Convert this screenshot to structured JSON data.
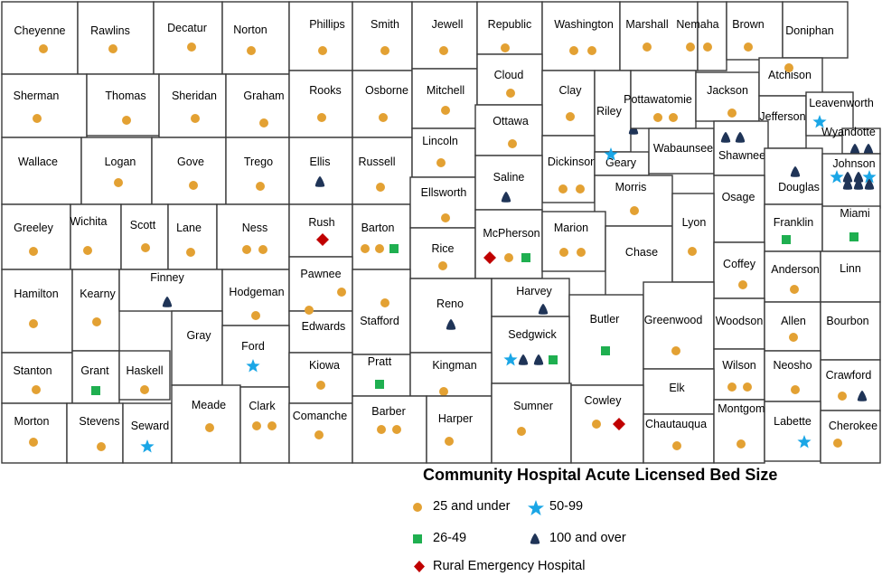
{
  "colors": {
    "small": "#E3A133",
    "medium": "#1FAF50",
    "mid_star": "#1AA6E6",
    "large": "#1F3457",
    "reh": "#C00000"
  },
  "counties": [
    {
      "name": "Cheyenne",
      "m": [
        "s"
      ]
    },
    {
      "name": "Rawlins",
      "m": [
        "s"
      ]
    },
    {
      "name": "Decatur",
      "m": [
        "s"
      ]
    },
    {
      "name": "Norton",
      "m": [
        "s"
      ]
    },
    {
      "name": "Phillips",
      "m": [
        "s"
      ]
    },
    {
      "name": "Smith",
      "m": [
        "s"
      ]
    },
    {
      "name": "Jewell",
      "m": [
        "s"
      ]
    },
    {
      "name": "Republic",
      "m": [
        "s"
      ]
    },
    {
      "name": "Washington",
      "m": [
        "s",
        "s"
      ]
    },
    {
      "name": "Marshall",
      "m": [
        "s"
      ]
    },
    {
      "name": "Nemaha",
      "m": [
        "s",
        "s"
      ]
    },
    {
      "name": "Brown",
      "m": [
        "s"
      ]
    },
    {
      "name": "Doniphan",
      "m": []
    },
    {
      "name": "Sherman",
      "m": [
        "s"
      ]
    },
    {
      "name": "Thomas",
      "m": [
        "s"
      ]
    },
    {
      "name": "Sheridan",
      "m": [
        "s"
      ]
    },
    {
      "name": "Graham",
      "m": [
        "s"
      ]
    },
    {
      "name": "Rooks",
      "m": [
        "s"
      ]
    },
    {
      "name": "Osborne",
      "m": [
        "s"
      ]
    },
    {
      "name": "Mitchell",
      "m": [
        "s"
      ]
    },
    {
      "name": "Cloud",
      "m": [
        "s"
      ]
    },
    {
      "name": "Clay",
      "m": [
        "s"
      ]
    },
    {
      "name": "Riley",
      "m": [
        "l"
      ]
    },
    {
      "name": "Pottawatomie",
      "m": [
        "s",
        "s"
      ]
    },
    {
      "name": "Jackson",
      "m": [
        "s"
      ]
    },
    {
      "name": "Atchison",
      "m": [
        "s"
      ]
    },
    {
      "name": "Jefferson",
      "m": []
    },
    {
      "name": "Leavenworth",
      "m": [
        "t"
      ]
    },
    {
      "name": "Wyandotte",
      "m": [
        "l",
        "l"
      ]
    },
    {
      "name": "Wallace",
      "m": []
    },
    {
      "name": "Logan",
      "m": [
        "s"
      ]
    },
    {
      "name": "Gove",
      "m": [
        "s"
      ]
    },
    {
      "name": "Trego",
      "m": [
        "s"
      ]
    },
    {
      "name": "Ellis",
      "m": [
        "l"
      ]
    },
    {
      "name": "Russell",
      "m": [
        "s"
      ]
    },
    {
      "name": "Lincoln",
      "m": [
        "s"
      ]
    },
    {
      "name": "Ottawa",
      "m": [
        "s"
      ]
    },
    {
      "name": "Dickinson",
      "m": [
        "s",
        "s"
      ]
    },
    {
      "name": "Geary",
      "m": [
        "t"
      ]
    },
    {
      "name": "Wabaunsee",
      "m": []
    },
    {
      "name": "Shawnee",
      "m": [
        "l",
        "l"
      ]
    },
    {
      "name": "Douglas",
      "m": [
        "l"
      ]
    },
    {
      "name": "Johnson",
      "m": [
        "t",
        "l",
        "l",
        "t",
        "l",
        "l",
        "l"
      ]
    },
    {
      "name": "Greeley",
      "m": [
        "s"
      ]
    },
    {
      "name": "Wichita",
      "m": [
        "s"
      ]
    },
    {
      "name": "Scott",
      "m": [
        "s"
      ]
    },
    {
      "name": "Lane",
      "m": [
        "s"
      ]
    },
    {
      "name": "Ness",
      "m": [
        "s",
        "s"
      ]
    },
    {
      "name": "Rush",
      "m": [
        "r"
      ]
    },
    {
      "name": "Barton",
      "m": [
        "s",
        "s",
        "m"
      ]
    },
    {
      "name": "Ellsworth",
      "m": [
        "s"
      ]
    },
    {
      "name": "Saline",
      "m": [
        "l"
      ]
    },
    {
      "name": "Morris",
      "m": [
        "s"
      ]
    },
    {
      "name": "Osage",
      "m": []
    },
    {
      "name": "Franklin",
      "m": [
        "m"
      ]
    },
    {
      "name": "Miami",
      "m": [
        "m"
      ]
    },
    {
      "name": "Rice",
      "m": [
        "s"
      ]
    },
    {
      "name": "McPherson",
      "m": [
        "r",
        "s",
        "m"
      ]
    },
    {
      "name": "Marion",
      "m": [
        "s",
        "s"
      ]
    },
    {
      "name": "Chase",
      "m": []
    },
    {
      "name": "Lyon",
      "m": [
        "s"
      ]
    },
    {
      "name": "Coffey",
      "m": [
        "s"
      ]
    },
    {
      "name": "Anderson",
      "m": [
        "s"
      ]
    },
    {
      "name": "Linn",
      "m": []
    },
    {
      "name": "Hamilton",
      "m": [
        "s"
      ]
    },
    {
      "name": "Kearny",
      "m": [
        "s"
      ]
    },
    {
      "name": "Finney",
      "m": [
        "l"
      ]
    },
    {
      "name": "Hodgeman",
      "m": [
        "s"
      ]
    },
    {
      "name": "Pawnee",
      "m": [
        "s"
      ]
    },
    {
      "name": "Edwards",
      "m": [
        "s"
      ]
    },
    {
      "name": "Stafford",
      "m": [
        "s"
      ]
    },
    {
      "name": "Reno",
      "m": [
        "l"
      ]
    },
    {
      "name": "Harvey",
      "m": [
        "l"
      ]
    },
    {
      "name": "Butler",
      "m": [
        "m"
      ]
    },
    {
      "name": "Greenwood",
      "m": [
        "s"
      ]
    },
    {
      "name": "Woodson",
      "m": []
    },
    {
      "name": "Allen",
      "m": [
        "s"
      ]
    },
    {
      "name": "Bourbon",
      "m": []
    },
    {
      "name": "Gray",
      "m": []
    },
    {
      "name": "Ford",
      "m": [
        "t"
      ]
    },
    {
      "name": "Sedgwick",
      "m": [
        "t",
        "l",
        "l",
        "m"
      ]
    },
    {
      "name": "Stanton",
      "m": [
        "s"
      ]
    },
    {
      "name": "Grant",
      "m": [
        "m"
      ]
    },
    {
      "name": "Haskell",
      "m": [
        "s"
      ]
    },
    {
      "name": "Kiowa",
      "m": [
        "s"
      ]
    },
    {
      "name": "Pratt",
      "m": [
        "m"
      ]
    },
    {
      "name": "Kingman",
      "m": [
        "s"
      ]
    },
    {
      "name": "Wilson",
      "m": [
        "s",
        "s"
      ]
    },
    {
      "name": "Neosho",
      "m": [
        "s"
      ]
    },
    {
      "name": "Crawford",
      "m": [
        "s",
        "l"
      ]
    },
    {
      "name": "Elk",
      "m": []
    },
    {
      "name": "Morton",
      "m": [
        "s"
      ]
    },
    {
      "name": "Stevens",
      "m": [
        "s"
      ]
    },
    {
      "name": "Seward",
      "m": [
        "t"
      ]
    },
    {
      "name": "Meade",
      "m": [
        "s"
      ]
    },
    {
      "name": "Clark",
      "m": [
        "s",
        "s"
      ]
    },
    {
      "name": "Comanche",
      "m": [
        "s"
      ]
    },
    {
      "name": "Barber",
      "m": [
        "s",
        "s"
      ]
    },
    {
      "name": "Harper",
      "m": [
        "s"
      ]
    },
    {
      "name": "Sumner",
      "m": [
        "s"
      ]
    },
    {
      "name": "Cowley",
      "m": [
        "s",
        "r"
      ]
    },
    {
      "name": "Chautauqua",
      "m": [
        "s"
      ]
    },
    {
      "name": "Montgomery",
      "m": [
        "s"
      ]
    },
    {
      "name": "Labette",
      "m": [
        "t"
      ]
    },
    {
      "name": "Cherokee",
      "m": [
        "s"
      ]
    }
  ],
  "legend": {
    "title": "Community Hospital Acute Licensed Bed Size",
    "small": "25 and under",
    "mid": "50-99",
    "medium": "26-49",
    "large": "100 and over",
    "reh": "Rural Emergency Hospital"
  }
}
